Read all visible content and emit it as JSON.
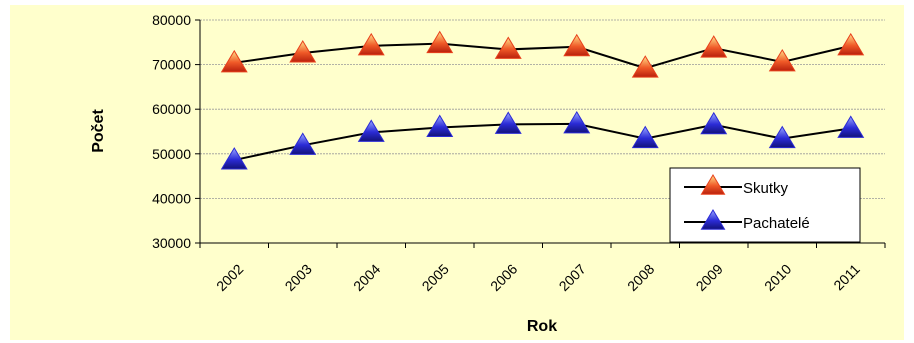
{
  "chart_data": {
    "type": "line",
    "title": "",
    "xlabel": "Rok",
    "ylabel": "Počet",
    "ylim": [
      30000,
      80000
    ],
    "yticks": [
      30000,
      40000,
      50000,
      60000,
      70000,
      80000
    ],
    "categories": [
      "2002",
      "2003",
      "2004",
      "2005",
      "2006",
      "2007",
      "2008",
      "2009",
      "2010",
      "2011"
    ],
    "grid": true,
    "legend_position": "bottom-right",
    "series": [
      {
        "name": "Skutky",
        "marker": "triangle",
        "color": "#e8401c",
        "values": [
          70400,
          72600,
          74200,
          74700,
          73400,
          74000,
          69200,
          73700,
          70600,
          74200
        ]
      },
      {
        "name": "Pachatelé",
        "marker": "triangle",
        "color": "#2b2bd6",
        "values": [
          48600,
          51900,
          54800,
          55900,
          56600,
          56700,
          53400,
          56500,
          53400,
          55700
        ]
      }
    ],
    "colors": {
      "background": "#ffffcc",
      "line": "#000000",
      "grid": "#999999"
    }
  }
}
